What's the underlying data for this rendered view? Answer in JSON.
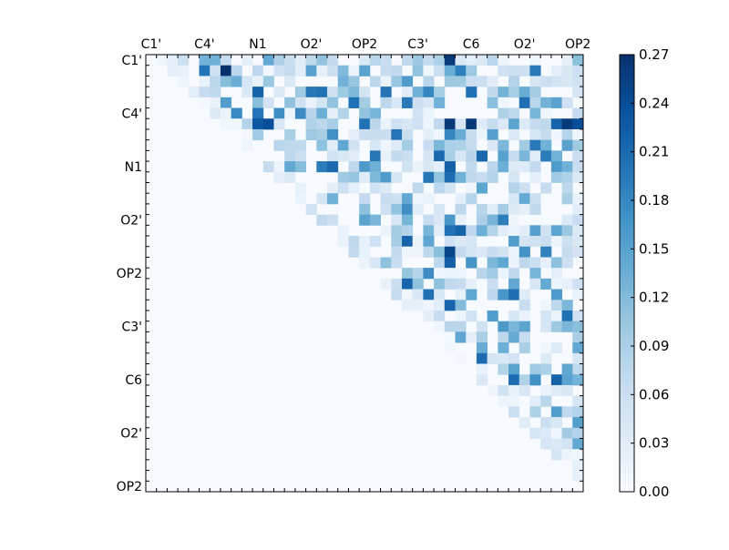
{
  "chart_data": {
    "type": "heatmap",
    "title": "",
    "xlabel": "",
    "ylabel": "",
    "x_tick_labels": [
      "C1'",
      "C4'",
      "N1",
      "O2'",
      "OP2",
      "C3'",
      "C6",
      "O2'",
      "OP2"
    ],
    "y_tick_labels": [
      "C1'",
      "C4'",
      "N1",
      "O2'",
      "OP2",
      "C3'",
      "C6",
      "O2'",
      "OP2"
    ],
    "x_ticks_on_top": true,
    "matrix_size": 41,
    "upper_triangular": true,
    "colormap": "Blues",
    "colormap_stops": [
      "#f7fbff",
      "#deebf7",
      "#c6dbef",
      "#9ecae1",
      "#6baed6",
      "#4292c6",
      "#2171b5",
      "#08519c",
      "#08306b"
    ],
    "vmin": 0.0,
    "vmax": 0.27,
    "colorbar_ticks": [
      "0.00",
      "0.03",
      "0.06",
      "0.09",
      "0.12",
      "0.15",
      "0.18",
      "0.21",
      "0.24",
      "0.27"
    ],
    "highlighted_cells": [
      {
        "row": 1,
        "col": 5,
        "value": 0.2
      },
      {
        "row": 1,
        "col": 7,
        "value": 0.27
      },
      {
        "row": 6,
        "col": 10,
        "value": 0.23
      },
      {
        "row": 6,
        "col": 11,
        "value": 0.24
      },
      {
        "row": 5,
        "col": 10,
        "value": 0.2
      },
      {
        "row": 6,
        "col": 28,
        "value": 0.26
      },
      {
        "row": 6,
        "col": 30,
        "value": 0.26
      },
      {
        "row": 6,
        "col": 39,
        "value": 0.26
      },
      {
        "row": 6,
        "col": 40,
        "value": 0.24
      },
      {
        "row": 0,
        "col": 28,
        "value": 0.26
      },
      {
        "row": 10,
        "col": 17,
        "value": 0.21
      },
      {
        "row": 10,
        "col": 28,
        "value": 0.22
      },
      {
        "row": 18,
        "col": 28,
        "value": 0.25
      },
      {
        "row": 19,
        "col": 28,
        "value": 0.22
      }
    ]
  }
}
